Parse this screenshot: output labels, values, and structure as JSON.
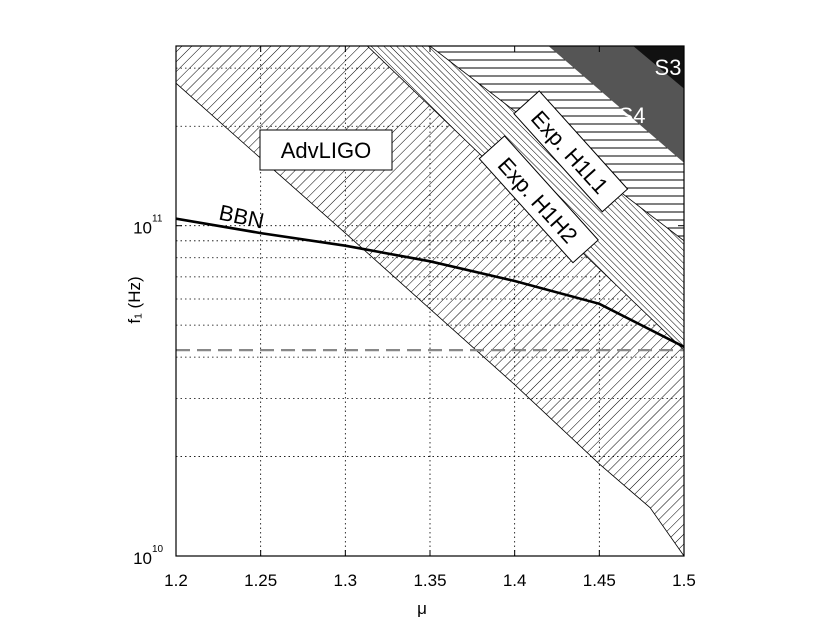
{
  "chart_data": {
    "type": "area",
    "xlabel": "μ",
    "ylabel": "f₁ (Hz)",
    "xlim": [
      1.2,
      1.5
    ],
    "ylim": [
      10000000000.0,
      350000000000.0
    ],
    "yscale": "log",
    "grid": true,
    "x_ticks": [
      "1.2",
      "1.25",
      "1.3",
      "1.35",
      "1.4",
      "1.45",
      "1.5"
    ],
    "y_ticks": [
      {
        "base": "10",
        "exp": "10",
        "value": 10000000000.0
      },
      {
        "base": "10",
        "exp": "11",
        "value": 100000000000.0
      }
    ],
    "regions": [
      {
        "name": "AdvLIGO",
        "fill": "hatch-diagonal-right",
        "upper": [
          [
            1.2,
            350000000000.0
          ],
          [
            1.5,
            350000000000.0
          ]
        ],
        "lower": [
          [
            1.2,
            270000000000.0
          ],
          [
            1.25,
            160000000000.0
          ],
          [
            1.3,
            95000000000.0
          ],
          [
            1.35,
            56000000000.0
          ],
          [
            1.4,
            33000000000.0
          ],
          [
            1.45,
            19000000000.0
          ],
          [
            1.48,
            14000000000.0
          ],
          [
            1.5,
            10000000000.0
          ]
        ]
      },
      {
        "name": "Exp. H1H2",
        "fill": "hatch-diagonal-dense",
        "boundary": [
          [
            1.313,
            350000000000.0
          ],
          [
            1.5,
            42000000000.0
          ]
        ]
      },
      {
        "name": "Exp. H1L1",
        "fill": "hatch-horizontal",
        "boundary": [
          [
            1.35,
            350000000000.0
          ],
          [
            1.5,
            90000000000.0
          ]
        ]
      },
      {
        "name": "S4",
        "fill": "#555555",
        "boundary": [
          [
            1.42,
            350000000000.0
          ],
          [
            1.5,
            155000000000.0
          ]
        ]
      },
      {
        "name": "S3",
        "fill": "#111111",
        "boundary": [
          [
            1.47,
            350000000000.0
          ],
          [
            1.5,
            260000000000.0
          ]
        ]
      }
    ],
    "series": [
      {
        "name": "BBN",
        "style": "solid-black",
        "x": [
          1.2,
          1.25,
          1.3,
          1.35,
          1.4,
          1.45,
          1.5
        ],
        "y": [
          105000000000.0,
          95000000000.0,
          87000000000.0,
          78000000000.0,
          68000000000.0,
          58000000000.0,
          43000000000.0
        ]
      },
      {
        "name": "",
        "style": "dashed-gray",
        "x": [
          1.2,
          1.5
        ],
        "y": [
          42000000000.0,
          42000000000.0
        ]
      }
    ],
    "labels": [
      "AdvLIGO",
      "BBN",
      "Exp. H1H2",
      "Exp. H1L1",
      "S4",
      "S3"
    ],
    "colors": {
      "s4": "#555555",
      "s3": "#111111",
      "dashed": "#888888",
      "grid": "#000000"
    }
  }
}
